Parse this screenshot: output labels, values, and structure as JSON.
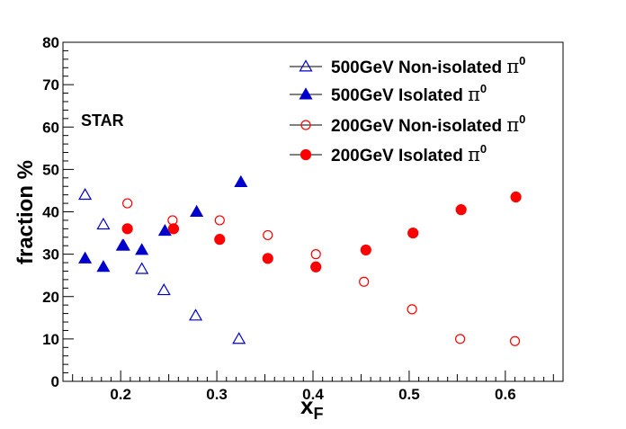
{
  "chart_data": {
    "type": "scatter",
    "annotation": "STAR",
    "xlabel": "x",
    "xlabel_sub": "F",
    "ylabel": "fraction %",
    "xlim": [
      0.14,
      0.66
    ],
    "ylim": [
      0,
      80
    ],
    "grid": false,
    "legend_position": "top-right",
    "x_ticks": [
      0.2,
      0.3,
      0.4,
      0.5,
      0.6
    ],
    "x_tick_labels": [
      "0.2",
      "0.3",
      "0.4",
      "0.5",
      "0.6"
    ],
    "y_ticks": [
      0,
      10,
      20,
      30,
      40,
      50,
      60,
      70,
      80
    ],
    "y_tick_labels": [
      "0",
      "10",
      "20",
      "30",
      "40",
      "50",
      "60",
      "70",
      "80"
    ],
    "series": [
      {
        "name": "500GeV Non-isolated",
        "name_sym": "π",
        "name_sup": "0",
        "marker": "triangle-open",
        "color": "#0000cc",
        "x": [
          0.163,
          0.182,
          0.202,
          0.222,
          0.245,
          0.278,
          0.323
        ],
        "y": [
          44,
          37,
          32,
          26.5,
          21.5,
          15.5,
          10
        ]
      },
      {
        "name": "500GeV Isolated",
        "name_sym": "π",
        "name_sup": "0",
        "marker": "triangle-filled",
        "color": "#0000cc",
        "x": [
          0.163,
          0.182,
          0.203,
          0.222,
          0.246,
          0.279,
          0.325
        ],
        "y": [
          29,
          27,
          32,
          31,
          35.5,
          40,
          47
        ]
      },
      {
        "name": "200GeV Non-isolated",
        "name_sym": "π",
        "name_sup": "0",
        "marker": "circle-open",
        "color": "#ff0000",
        "x": [
          0.207,
          0.254,
          0.303,
          0.353,
          0.403,
          0.453,
          0.503,
          0.553,
          0.61
        ],
        "y": [
          42,
          38,
          38,
          34.5,
          30,
          23.5,
          17,
          10,
          9.5
        ]
      },
      {
        "name": "200GeV Isolated",
        "name_sym": "π",
        "name_sup": "0",
        "marker": "circle-filled",
        "color": "#ff0000",
        "x": [
          0.207,
          0.255,
          0.303,
          0.353,
          0.403,
          0.455,
          0.504,
          0.554,
          0.611
        ],
        "y": [
          36,
          36,
          33.5,
          29,
          27,
          31,
          35,
          40.5,
          43.5
        ]
      }
    ]
  }
}
